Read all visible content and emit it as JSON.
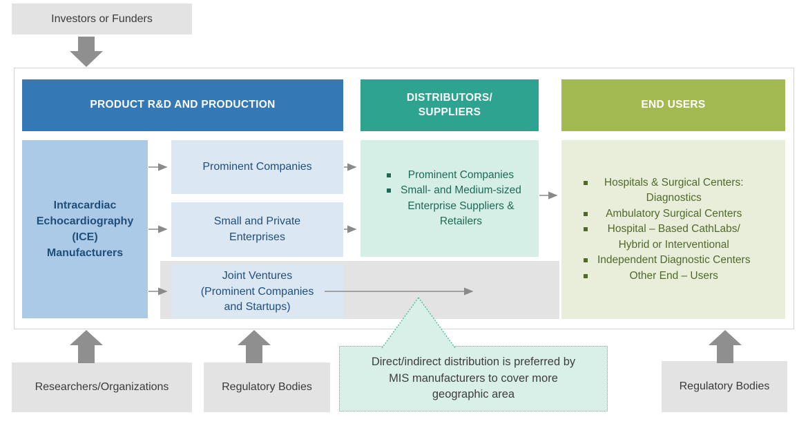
{
  "top_box": {
    "label": "Investors or Funders"
  },
  "headers": {
    "production": "PRODUCT R&D AND PRODUCTION",
    "distributors": "DISTRIBUTORS/\nSUPPLIERS",
    "end_users": "END USERS"
  },
  "production_column": {
    "manufacturers": "Intracardiac\nEchocardiography\n(ICE)\nManufacturers",
    "prominent": "Prominent Companies",
    "small_private": "Small and Private\nEnterprises",
    "joint_ventures": "Joint Ventures\n(Prominent Companies\nand Startups)"
  },
  "distributors_box": {
    "items": [
      "Prominent Companies",
      "Small- and Medium-sized\nEnterprise Suppliers &\nRetailers"
    ]
  },
  "end_users_box": {
    "items": [
      "Hospitals & Surgical Centers:\nDiagnostics",
      "Ambulatory Surgical Centers",
      "Hospital – Based CathLabs/\nHybrid or Interventional",
      "Independent Diagnostic Centers",
      "Other End – Users"
    ]
  },
  "bottom_boxes": {
    "researchers": "Researchers/Organizations",
    "regulatory_left": "Regulatory Bodies",
    "regulatory_right": "Regulatory Bodies"
  },
  "callout": {
    "text": "Direct/indirect distribution is preferred by\nMIS manufacturers to cover more\ngeographic area"
  },
  "colors": {
    "header_blue": "#3478b5",
    "header_teal": "#2da390",
    "header_olive": "#a3ba52",
    "manufacturers_blue": "#abcae7",
    "light_blue_box": "#dbe8f4",
    "mint_box": "#d5eee6",
    "olive_box": "#e9eeda",
    "gray_box": "#e3e3e3",
    "arrow_gray": "#8a8a8a",
    "navy_text": "#1f4e79",
    "teal_text": "#1c6a54",
    "olive_text": "#50682a",
    "callout_border": "#52bfa7"
  },
  "icons": {
    "flow-arrow": "thin gray right arrow →",
    "block-arrow": "solid gray block arrow"
  }
}
